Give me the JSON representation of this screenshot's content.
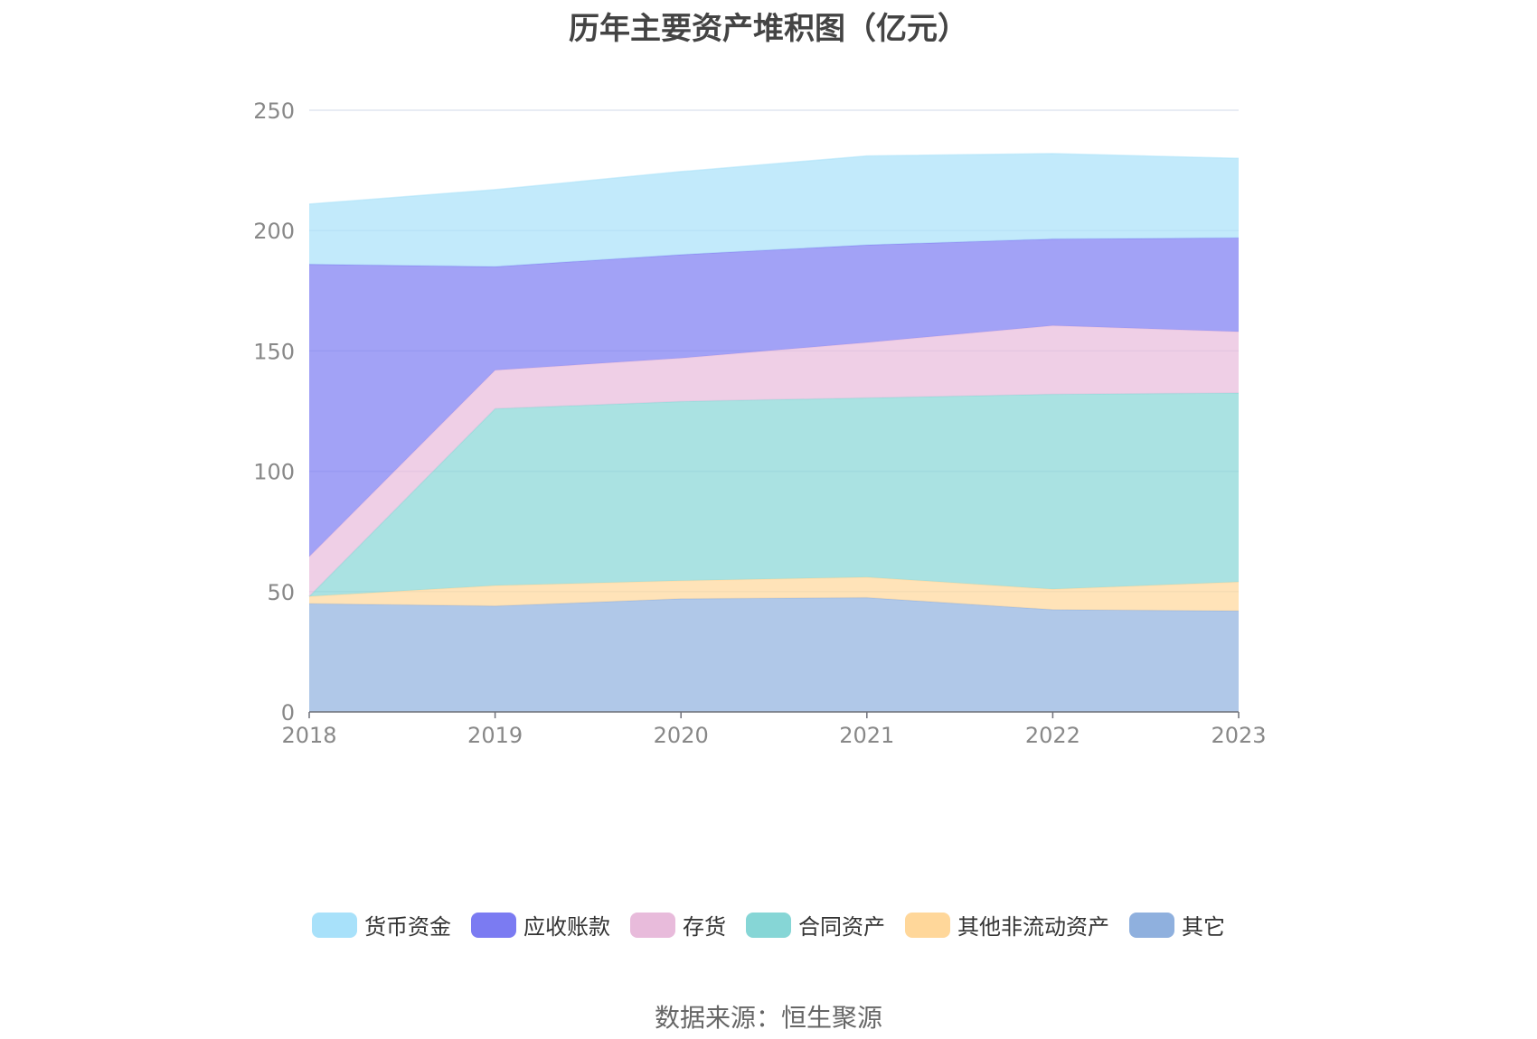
{
  "title": "历年主要资产堆积图（亿元）",
  "source": "数据来源：恒生聚源",
  "chart_data": {
    "type": "area",
    "stacked": true,
    "title": "历年主要资产堆积图（亿元）",
    "x": [
      "2018",
      "2019",
      "2020",
      "2021",
      "2022",
      "2023"
    ],
    "ylim": [
      0,
      250
    ],
    "yticks": [
      0,
      50,
      100,
      150,
      200,
      250
    ],
    "grid": true,
    "legend_position": "bottom",
    "series": [
      {
        "name": "其它",
        "color": "#8FB0DE",
        "values": [
          45,
          44,
          47,
          47.5,
          42.5,
          42
        ]
      },
      {
        "name": "其他非流动资产",
        "color": "#FFD79A",
        "values": [
          3,
          8.5,
          7.5,
          8.5,
          8.5,
          12
        ]
      },
      {
        "name": "合同资产",
        "color": "#86D6D6",
        "values": [
          0,
          73.5,
          74.5,
          74.5,
          81,
          78.5
        ]
      },
      {
        "name": "存货",
        "color": "#E8BBDB",
        "values": [
          16.5,
          16,
          18,
          23,
          28.5,
          25.5
        ]
      },
      {
        "name": "应收账款",
        "color": "#7B7BF2",
        "values": [
          121.5,
          43,
          43,
          40.5,
          36,
          39
        ]
      },
      {
        "name": "货币资金",
        "color": "#A8E1FA",
        "values": [
          25,
          32,
          34.5,
          37,
          35.5,
          33
        ]
      }
    ]
  },
  "legend": [
    {
      "label": "货币资金",
      "color": "#A8E1FA"
    },
    {
      "label": "应收账款",
      "color": "#7B7BF2"
    },
    {
      "label": "存货",
      "color": "#E8BBDB"
    },
    {
      "label": "合同资产",
      "color": "#86D6D6"
    },
    {
      "label": "其他非流动资产",
      "color": "#FFD79A"
    },
    {
      "label": "其它",
      "color": "#8FB0DE"
    }
  ]
}
